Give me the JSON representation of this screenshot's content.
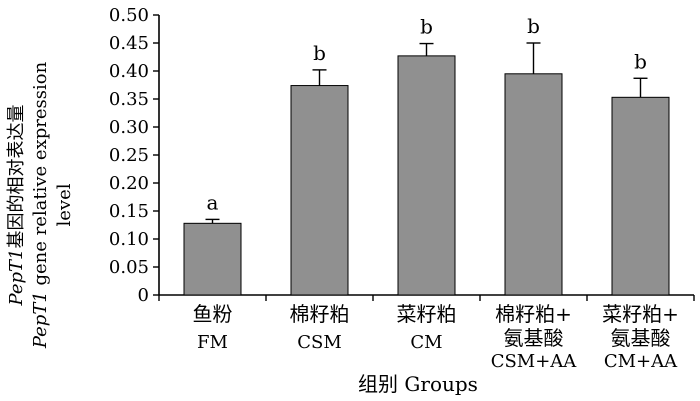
{
  "chart_data": {
    "type": "bar",
    "categories": [
      {
        "zh": "鱼粉",
        "en": "FM"
      },
      {
        "zh": "棉籽粕",
        "en": "CSM"
      },
      {
        "zh": "菜籽粕",
        "en": "CM"
      },
      {
        "zh": "棉籽粕+",
        "zh2": "氨基酸",
        "en": "CSM+AA"
      },
      {
        "zh": "菜籽粕+",
        "zh2": "氨基酸",
        "en": "CM+AA"
      }
    ],
    "values": [
      0.128,
      0.374,
      0.427,
      0.395,
      0.353
    ],
    "errors": [
      0.007,
      0.028,
      0.022,
      0.055,
      0.034
    ],
    "significance_labels": [
      "a",
      "b",
      "b",
      "b",
      "b"
    ],
    "xlabel": "组别 Groups",
    "ylabel": {
      "line1_italic": "PepT1",
      "line1_rest": "基因的相对表达量",
      "line2_italic": "PepT1",
      "line2_rest": " gene relative expression",
      "line3": "level"
    },
    "ylim": [
      0,
      0.5
    ],
    "yticks": [
      0,
      0.05,
      0.1,
      0.15,
      0.2,
      0.25,
      0.3,
      0.35,
      0.4,
      0.45,
      0.5
    ],
    "ytick_labels": [
      "0",
      "0.05",
      "0.10",
      "0.15",
      "0.20",
      "0.25",
      "0.30",
      "0.35",
      "0.40",
      "0.45",
      "0.50"
    ],
    "bar_color": "#909090",
    "bar_edge_color": "#000000",
    "grid": false
  }
}
